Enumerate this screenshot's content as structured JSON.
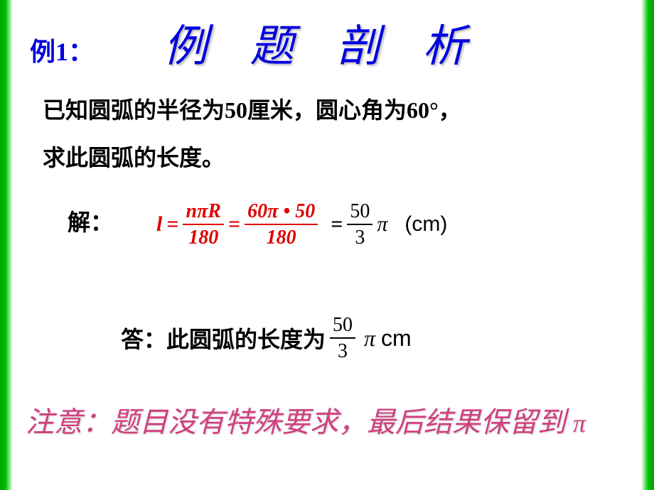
{
  "header": {
    "example_label": "例1：",
    "title": "例 题 剖 析"
  },
  "problem": {
    "line1": "已知圆弧的半径为50厘米，圆心角为60°，",
    "line2": "求此圆弧的长度。"
  },
  "solution": {
    "label": "解：",
    "formula": {
      "lhs_var": "l",
      "frac1_num": "nπR",
      "frac1_den": "180",
      "frac2_num": "60π • 50",
      "frac2_den": "180",
      "result_num": "50",
      "result_den": "3",
      "result_pi": "π",
      "unit": "(cm)",
      "formula_color": "#e00000",
      "text_color": "#000000"
    }
  },
  "answer": {
    "prefix": "答：此圆弧的长度为",
    "frac_num": "50",
    "frac_den": "3",
    "pi": "π",
    "unit": "cm"
  },
  "note": {
    "prefix": "注意：题目没有特殊要求，最后结果保留到",
    "pi": "π",
    "note_color": "#d04080"
  },
  "style": {
    "title_color": "#0000e0",
    "bg_left_green": "#00a000",
    "slide_width": 920,
    "slide_height": 690
  }
}
